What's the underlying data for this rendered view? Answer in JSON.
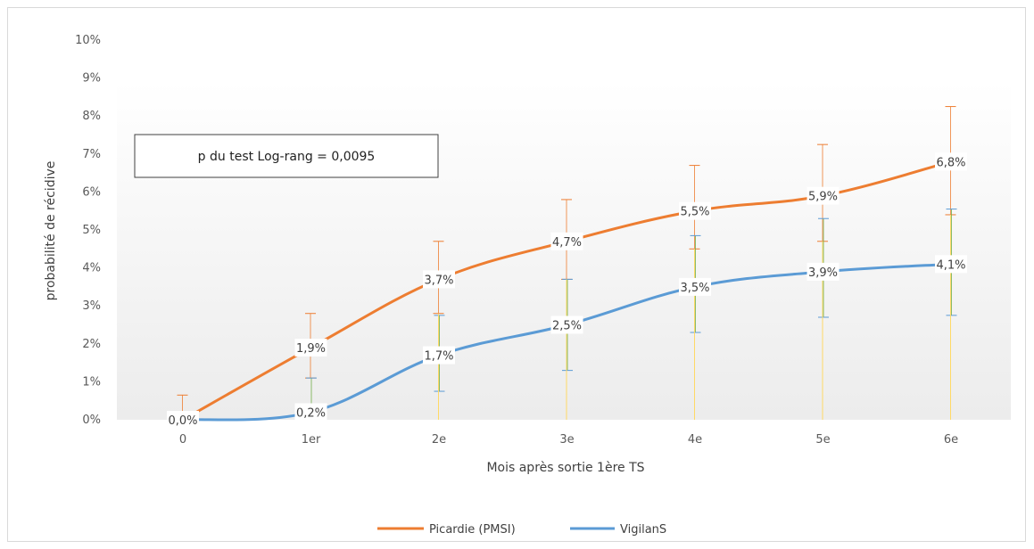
{
  "chart_data": {
    "type": "line",
    "xlabel": "Mois après sortie 1ère TS",
    "ylabel": "probabilité de récidive",
    "categories": [
      "0",
      "1er",
      "2e",
      "3e",
      "4e",
      "5e",
      "6e"
    ],
    "yticks": [
      "0%",
      "1%",
      "2%",
      "3%",
      "4%",
      "5%",
      "6%",
      "7%",
      "8%",
      "9%",
      "10%"
    ],
    "ylim": [
      0,
      10
    ],
    "grid": false,
    "legend_position": "bottom",
    "annotation": "p du test Log-rang = 0,0095",
    "series": [
      {
        "name": "Picardie (PMSI)",
        "color": "#ed7d31",
        "values": [
          0.0,
          1.9,
          3.7,
          4.7,
          5.5,
          5.9,
          6.8
        ],
        "labels": [
          "0,0%",
          "1,9%",
          "3,7%",
          "4,7%",
          "5,5%",
          "5,9%",
          "6,8%"
        ],
        "error_low": [
          0.0,
          1.1,
          2.8,
          3.7,
          4.5,
          4.7,
          5.4
        ],
        "error_high": [
          0.65,
          2.8,
          4.7,
          5.8,
          6.7,
          7.25,
          8.25
        ]
      },
      {
        "name": "VigilanS",
        "color": "#5b9bd5",
        "values": [
          0.0,
          0.2,
          1.7,
          2.5,
          3.5,
          3.9,
          4.1
        ],
        "labels": [
          "",
          "0,2%",
          "1,7%",
          "2,5%",
          "3,5%",
          "3,9%",
          "4,1%"
        ],
        "error_low": [
          0.0,
          0.0,
          0.75,
          1.3,
          2.3,
          2.7,
          2.75
        ],
        "error_high": [
          0.0,
          1.1,
          2.75,
          3.7,
          4.85,
          5.3,
          5.55
        ]
      }
    ]
  }
}
